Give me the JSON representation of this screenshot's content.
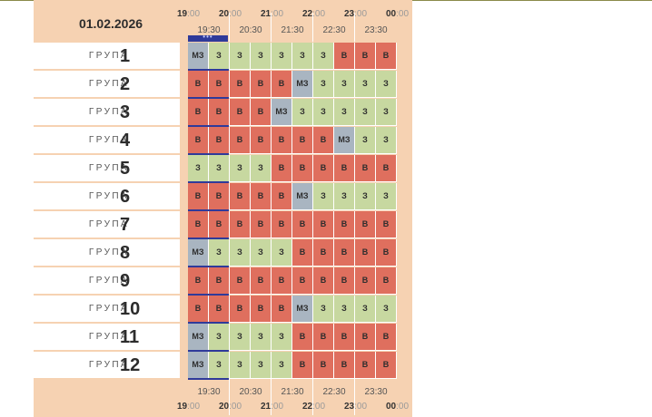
{
  "date": "01.02.2026",
  "hour_labels": [
    {
      "h": "19",
      "m": ":00"
    },
    {
      "h": "20",
      "m": ":00"
    },
    {
      "h": "21",
      "m": ":00"
    },
    {
      "h": "22",
      "m": ":00"
    },
    {
      "h": "23",
      "m": ":00"
    },
    {
      "h": "00",
      "m": ":00"
    }
  ],
  "half_labels": [
    "19:30",
    "20:30",
    "21:30",
    "22:30",
    "23:30"
  ],
  "group_word": "ГРУПА",
  "marker_text": "•••",
  "groups": [
    {
      "num": "1",
      "cells": [
        "МЗ",
        "З",
        "З",
        "З",
        "З",
        "З",
        "З",
        "В",
        "В",
        "В"
      ]
    },
    {
      "num": "2",
      "cells": [
        "В",
        "В",
        "В",
        "В",
        "В",
        "МЗ",
        "З",
        "З",
        "З",
        "З"
      ]
    },
    {
      "num": "3",
      "cells": [
        "В",
        "В",
        "В",
        "В",
        "МЗ",
        "З",
        "З",
        "З",
        "З",
        "З"
      ]
    },
    {
      "num": "4",
      "cells": [
        "В",
        "В",
        "В",
        "В",
        "В",
        "В",
        "В",
        "МЗ",
        "З",
        "З"
      ]
    },
    {
      "num": "5",
      "cells": [
        "З",
        "З",
        "З",
        "З",
        "В",
        "В",
        "В",
        "В",
        "В",
        "В"
      ]
    },
    {
      "num": "6",
      "cells": [
        "В",
        "В",
        "В",
        "В",
        "В",
        "МЗ",
        "З",
        "З",
        "З",
        "З"
      ]
    },
    {
      "num": "7",
      "cells": [
        "В",
        "В",
        "В",
        "В",
        "В",
        "В",
        "В",
        "В",
        "В",
        "В"
      ]
    },
    {
      "num": "8",
      "cells": [
        "МЗ",
        "З",
        "З",
        "З",
        "З",
        "В",
        "В",
        "В",
        "В",
        "В"
      ]
    },
    {
      "num": "9",
      "cells": [
        "В",
        "В",
        "В",
        "В",
        "В",
        "В",
        "В",
        "В",
        "В",
        "В"
      ]
    },
    {
      "num": "10",
      "cells": [
        "В",
        "В",
        "В",
        "В",
        "В",
        "МЗ",
        "З",
        "З",
        "З",
        "З"
      ]
    },
    {
      "num": "11",
      "cells": [
        "МЗ",
        "З",
        "З",
        "З",
        "З",
        "В",
        "В",
        "В",
        "В",
        "В"
      ]
    },
    {
      "num": "12",
      "cells": [
        "МЗ",
        "З",
        "З",
        "З",
        "З",
        "В",
        "В",
        "В",
        "В",
        "В"
      ]
    }
  ],
  "colors": {
    "З": "#c7d8a0",
    "В": "#df6f5e",
    "МЗ": "#a9b5c1",
    "panel": "#f6d2b2",
    "marker": "#2f3a9a"
  }
}
